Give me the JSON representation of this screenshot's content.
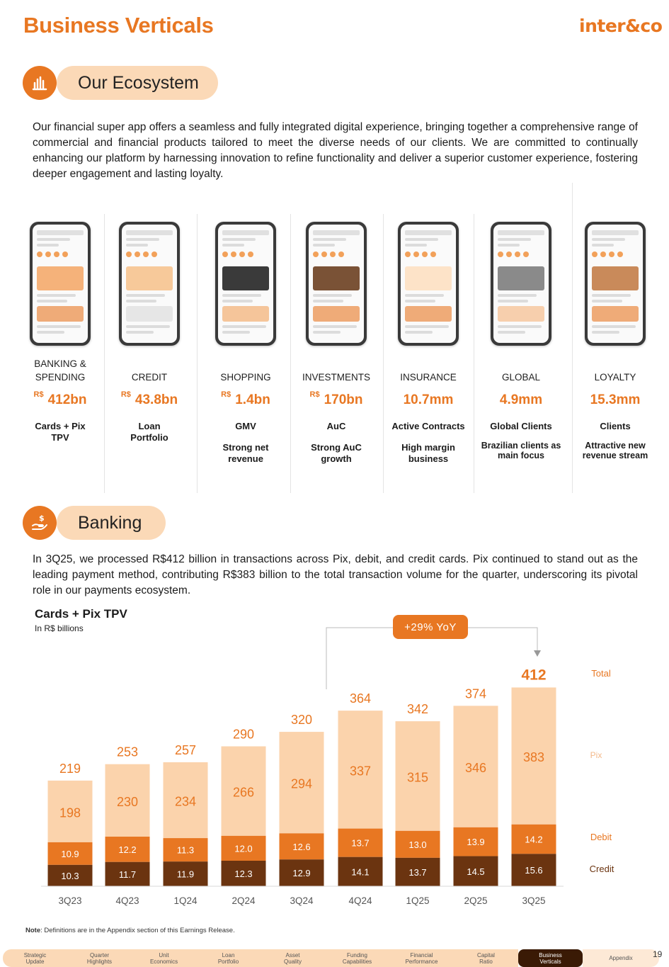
{
  "header": {
    "title": "Business Verticals",
    "logo_text": "inter&co"
  },
  "ecosystem": {
    "heading": "Our Ecosystem",
    "paragraph": "Our financial super app offers a seamless and fully integrated digital experience, bringing together a comprehensive range of commercial and financial products tailored to meet the diverse needs of our clients. We are committed to continually enhancing our platform by harnessing innovation to refine functionality and deliver a superior customer experience, fostering deeper engagement and lasting loyalty."
  },
  "verticals": [
    {
      "name": "BANKING & SPENDING",
      "currency": "R$",
      "value": "412bn",
      "label": "Cards + Pix TPV",
      "sub": ""
    },
    {
      "name": "CREDIT",
      "currency": "R$",
      "value": "43.8bn",
      "label": "Loan Portfolio",
      "sub": ""
    },
    {
      "name": "SHOPPING",
      "currency": "R$",
      "value": "1.4bn",
      "label": "GMV",
      "sub": "Strong net revenue"
    },
    {
      "name": "INVESTMENTS",
      "currency": "R$",
      "value": "170bn",
      "label": "AuC",
      "sub": "Strong AuC growth"
    },
    {
      "name": "INSURANCE",
      "currency": "",
      "value": "10.7mm",
      "label": "Active Contracts",
      "sub": "High margin business"
    },
    {
      "name": "GLOBAL",
      "currency": "",
      "value": "4.9mm",
      "label": "Global Clients",
      "sub": "Brazilian clients as main focus"
    },
    {
      "name": "LOYALTY",
      "currency": "",
      "value": "15.3mm",
      "label": "Clients",
      "sub": "Attractive new revenue stream"
    }
  ],
  "banking": {
    "heading": "Banking",
    "paragraph": "In 3Q25, we processed R$412 billion in transactions across Pix, debit, and credit cards. Pix continued to stand out as the leading payment method, contributing R$383 billion to the total transaction volume for the quarter, underscoring its pivotal role in our payments ecosystem."
  },
  "chart_data": {
    "type": "bar",
    "stacked": true,
    "title": "Cards + Pix TPV",
    "subtitle": "In R$ billions",
    "categories": [
      "3Q23",
      "4Q23",
      "1Q24",
      "2Q24",
      "3Q24",
      "4Q24",
      "1Q25",
      "2Q25",
      "3Q25"
    ],
    "series": [
      {
        "name": "Credit",
        "values": [
          10.3,
          11.7,
          11.9,
          12.3,
          12.9,
          14.1,
          13.7,
          14.5,
          15.6
        ],
        "color": "#6b3410"
      },
      {
        "name": "Debit",
        "values": [
          10.9,
          12.2,
          11.3,
          12.0,
          12.6,
          13.7,
          13.0,
          13.9,
          14.2
        ],
        "color": "#e87722"
      },
      {
        "name": "Pix",
        "values": [
          198,
          230,
          234,
          266,
          294,
          337,
          315,
          346,
          383
        ],
        "color": "#fbd3ac"
      }
    ],
    "totals": {
      "name": "Total",
      "values": [
        219,
        253,
        257,
        290,
        320,
        364,
        342,
        374,
        412
      ]
    },
    "annotation": "+29% YoY",
    "ylim": [
      0,
      412
    ],
    "grid": false
  },
  "note": {
    "bold": "Note",
    "text": ": Definitions are in the Appendix section of this Earnings Release."
  },
  "footer": {
    "tabs": [
      "Strategic Update",
      "Quarter Highlights",
      "Unit Economics",
      "Loan Portfolio",
      "Asset Quality",
      "Funding Capabilities",
      "Financial Performance",
      "Capital Ratio",
      "Business Verticals",
      "Appendix"
    ],
    "active": "Business Verticals",
    "page": "19"
  },
  "colors": {
    "accent": "#e87722",
    "pill": "#fbd9b7",
    "dark": "#6b3410"
  }
}
